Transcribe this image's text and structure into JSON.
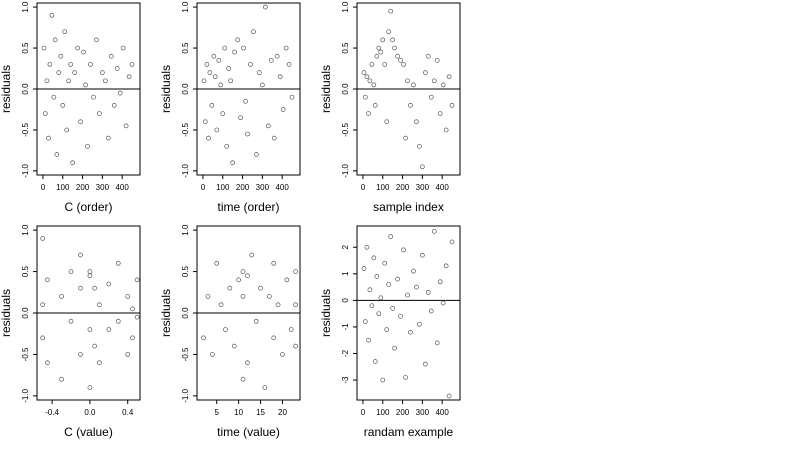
{
  "chart_data": [
    {
      "type": "scatter",
      "xlabel": "C (order)",
      "ylabel": "residuals",
      "color": "#555555",
      "hline": 0,
      "xlim": [
        -30,
        490
      ],
      "ylim": [
        -1.05,
        1.05
      ],
      "xticks": [
        0,
        100,
        200,
        300,
        400
      ],
      "yticks": [
        {
          "value": -1,
          "label": "-1.0"
        },
        -0.5,
        {
          "value": 0,
          "label": "0.0"
        },
        0.5,
        {
          "value": 1,
          "label": "1.0"
        }
      ],
      "x": [
        5,
        12,
        20,
        28,
        35,
        45,
        55,
        62,
        70,
        80,
        90,
        100,
        110,
        120,
        130,
        140,
        150,
        160,
        175,
        190,
        205,
        215,
        225,
        240,
        255,
        270,
        285,
        300,
        315,
        330,
        345,
        360,
        375,
        390,
        405,
        420,
        435,
        450
      ],
      "y": [
        0.5,
        -0.3,
        0.1,
        -0.6,
        0.3,
        0.9,
        -0.1,
        0.6,
        -0.8,
        0.2,
        0.4,
        -0.2,
        0.7,
        -0.5,
        0.1,
        0.3,
        -0.9,
        0.2,
        0.5,
        -0.4,
        0.45,
        0.05,
        -0.7,
        0.3,
        -0.1,
        0.6,
        -0.3,
        0.2,
        0.1,
        -0.6,
        0.4,
        -0.2,
        0.25,
        -0.05,
        0.5,
        -0.45,
        0.15,
        0.3
      ]
    },
    {
      "type": "scatter",
      "xlabel": "time (order)",
      "ylabel": "residuals",
      "color": "#555555",
      "hline": 0,
      "xlim": [
        -30,
        490
      ],
      "ylim": [
        -1.05,
        1.05
      ],
      "xticks": [
        0,
        100,
        200,
        300,
        400
      ],
      "yticks": [
        {
          "value": -1,
          "label": "-1.0"
        },
        -0.5,
        {
          "value": 0,
          "label": "0.0"
        },
        0.5,
        {
          "value": 1,
          "label": "1.0"
        }
      ],
      "x": [
        5,
        12,
        20,
        28,
        35,
        45,
        55,
        62,
        70,
        80,
        90,
        100,
        110,
        120,
        130,
        140,
        150,
        160,
        175,
        190,
        205,
        215,
        225,
        240,
        255,
        270,
        285,
        300,
        315,
        330,
        345,
        360,
        375,
        390,
        405,
        420,
        435,
        450
      ],
      "y": [
        0.1,
        -0.4,
        0.3,
        -0.6,
        0.2,
        -0.2,
        0.4,
        0.15,
        -0.5,
        0.35,
        0.05,
        -0.3,
        0.5,
        -0.7,
        0.25,
        0.1,
        -0.9,
        0.45,
        0.6,
        -0.35,
        0.5,
        -0.15,
        -0.55,
        0.3,
        0.7,
        -0.8,
        0.2,
        0.05,
        1.0,
        -0.45,
        0.35,
        -0.6,
        0.4,
        0.15,
        -0.25,
        0.5,
        0.3,
        -0.1
      ]
    },
    {
      "type": "scatter",
      "xlabel": "sample index",
      "ylabel": "residuals",
      "color": "#555555",
      "hline": 0,
      "xlim": [
        -30,
        490
      ],
      "ylim": [
        -1.05,
        1.05
      ],
      "xticks": [
        0,
        100,
        200,
        300,
        400
      ],
      "yticks": [
        {
          "value": -1,
          "label": "-1.0"
        },
        -0.5,
        {
          "value": 0,
          "label": "0.0"
        },
        0.5,
        {
          "value": 1,
          "label": "1.0"
        }
      ],
      "x": [
        5,
        12,
        20,
        28,
        35,
        45,
        55,
        62,
        70,
        80,
        90,
        100,
        110,
        120,
        130,
        140,
        150,
        160,
        175,
        190,
        205,
        215,
        225,
        240,
        255,
        270,
        285,
        300,
        315,
        330,
        345,
        360,
        375,
        390,
        405,
        420,
        435,
        450
      ],
      "y": [
        0.2,
        -0.1,
        0.15,
        -0.3,
        0.1,
        0.3,
        0.05,
        -0.2,
        0.4,
        0.5,
        0.45,
        0.6,
        0.3,
        -0.4,
        0.7,
        0.95,
        0.6,
        0.5,
        0.4,
        0.35,
        0.3,
        -0.6,
        0.1,
        -0.2,
        0.05,
        -0.4,
        -0.7,
        -0.95,
        0.2,
        0.4,
        -0.1,
        0.1,
        0.35,
        -0.3,
        0.05,
        -0.5,
        0.15,
        -0.2
      ]
    },
    {
      "type": "scatter",
      "xlabel": "C (value)",
      "ylabel": "residuals",
      "color": "#555555",
      "hline": 0,
      "xlim": [
        -0.56,
        0.53
      ],
      "ylim": [
        -1.05,
        1.05
      ],
      "xticks": [
        -0.4,
        {
          "value": 0,
          "label": "0.0"
        },
        0.4
      ],
      "yticks": [
        {
          "value": -1,
          "label": "-1.0"
        },
        -0.5,
        {
          "value": 0,
          "label": "0.0"
        },
        0.5,
        {
          "value": 1,
          "label": "1.0"
        }
      ],
      "x": [
        -0.5,
        -0.5,
        -0.5,
        -0.45,
        -0.45,
        -0.3,
        -0.3,
        -0.2,
        -0.2,
        -0.1,
        -0.1,
        -0.1,
        0,
        0,
        0,
        0,
        0.05,
        0.05,
        0.1,
        0.1,
        0.2,
        0.2,
        0.3,
        0.3,
        0.4,
        0.4,
        0.45,
        0.45,
        0.5,
        0.5
      ],
      "y": [
        0.9,
        -0.3,
        0.1,
        0.4,
        -0.6,
        0.2,
        -0.8,
        0.5,
        -0.1,
        0.3,
        -0.5,
        0.7,
        0.5,
        0.45,
        -0.2,
        -0.9,
        0.3,
        -0.4,
        0.1,
        -0.6,
        0.35,
        -0.2,
        0.6,
        -0.1,
        0.2,
        -0.5,
        0.05,
        -0.3,
        0.4,
        -0.05
      ]
    },
    {
      "type": "scatter",
      "xlabel": "time (value)",
      "ylabel": "residuals",
      "color": "#555555",
      "hline": 0,
      "xlim": [
        0.5,
        24
      ],
      "ylim": [
        -1.05,
        1.05
      ],
      "xticks": [
        5,
        10,
        15,
        20
      ],
      "yticks": [
        {
          "value": -1,
          "label": "-1.0"
        },
        -0.5,
        {
          "value": 0,
          "label": "0.0"
        },
        0.5,
        {
          "value": 1,
          "label": "1.0"
        }
      ],
      "x": [
        2,
        3,
        4,
        5,
        6,
        7,
        8,
        9,
        10,
        11,
        11,
        11,
        12,
        12,
        13,
        14,
        15,
        16,
        17,
        18,
        18,
        19,
        20,
        21,
        22,
        23,
        23,
        23
      ],
      "y": [
        -0.3,
        0.2,
        -0.5,
        0.6,
        0.1,
        -0.2,
        0.3,
        -0.4,
        0.4,
        0.5,
        -0.8,
        0.2,
        0.45,
        -0.6,
        0.7,
        -0.1,
        0.3,
        -0.9,
        0.2,
        0.6,
        -0.3,
        0.1,
        -0.5,
        0.4,
        -0.2,
        0.5,
        -0.4,
        0.1
      ]
    },
    {
      "type": "scatter",
      "xlabel": "randam example",
      "ylabel": "residuals",
      "color": "#555555",
      "hline": 0,
      "xlim": [
        -30,
        490
      ],
      "ylim": [
        -3.75,
        2.8
      ],
      "xticks": [
        0,
        100,
        200,
        300,
        400
      ],
      "yticks": [
        -3,
        -2,
        -1,
        0,
        1,
        2
      ],
      "x": [
        5,
        12,
        20,
        28,
        35,
        45,
        55,
        62,
        70,
        80,
        90,
        100,
        110,
        120,
        130,
        140,
        150,
        160,
        175,
        190,
        205,
        215,
        225,
        240,
        255,
        270,
        285,
        300,
        315,
        330,
        345,
        360,
        375,
        390,
        405,
        420,
        435,
        450
      ],
      "y": [
        1.2,
        -0.8,
        2.0,
        -1.5,
        0.4,
        -0.2,
        1.6,
        -2.3,
        0.9,
        -0.5,
        0.1,
        -3.0,
        1.4,
        -1.1,
        0.6,
        2.4,
        -0.3,
        -1.8,
        0.8,
        -0.6,
        1.9,
        -2.9,
        0.2,
        -1.2,
        1.1,
        0.5,
        -0.9,
        1.7,
        -2.4,
        0.3,
        -0.4,
        2.6,
        -1.6,
        0.7,
        -0.1,
        1.3,
        -3.6,
        2.2
      ]
    }
  ]
}
